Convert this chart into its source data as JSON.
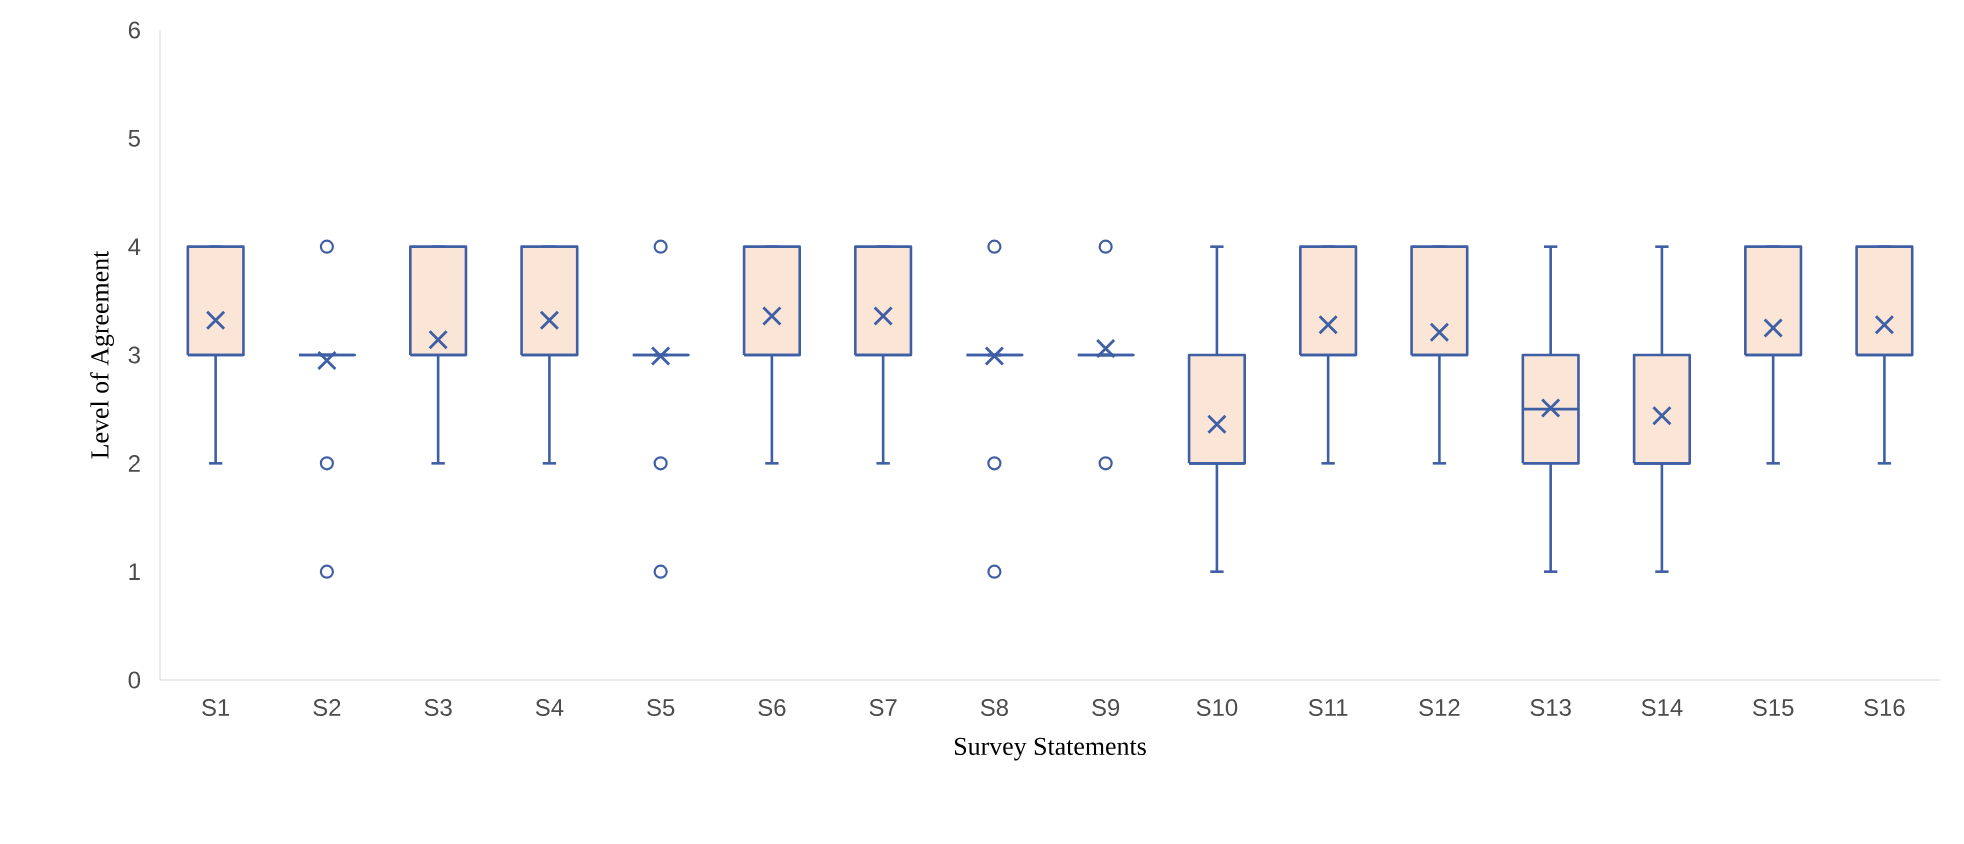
{
  "chart_data": {
    "type": "box",
    "xlabel": "Survey Statements",
    "ylabel": "Level of Agreement",
    "categories": [
      "S1",
      "S2",
      "S3",
      "S4",
      "S5",
      "S6",
      "S7",
      "S8",
      "S9",
      "S10",
      "S11",
      "S12",
      "S13",
      "S14",
      "S15",
      "S16"
    ],
    "ylim": [
      0,
      6
    ],
    "yticks": [
      0,
      1,
      2,
      3,
      4,
      5,
      6
    ],
    "marker": "cross",
    "series": [
      {
        "color": "#3f5fa5",
        "boxes": [
          {
            "low": 2,
            "q1": 3,
            "median": 3,
            "q3": 4,
            "high": 4,
            "mean": 3.32
          },
          {
            "low": 3,
            "q1": 3,
            "median": 3,
            "q3": 3,
            "high": 3,
            "mean": 2.95,
            "outliers": [
              4,
              2,
              1
            ]
          },
          {
            "low": 2,
            "q1": 3,
            "median": 3,
            "q3": 4,
            "high": 4,
            "mean": 3.14
          },
          {
            "low": 2,
            "q1": 3,
            "median": 3,
            "q3": 4,
            "high": 4,
            "mean": 3.32
          },
          {
            "low": 3,
            "q1": 3,
            "median": 3,
            "q3": 3,
            "high": 3,
            "mean": 2.99,
            "outliers": [
              4,
              2,
              1
            ]
          },
          {
            "low": 2,
            "q1": 3,
            "median": 3,
            "q3": 4,
            "high": 4,
            "mean": 3.36
          },
          {
            "low": 2,
            "q1": 3,
            "median": 3,
            "q3": 4,
            "high": 4,
            "mean": 3.36
          },
          {
            "low": 3,
            "q1": 3,
            "median": 3,
            "q3": 3,
            "high": 3,
            "mean": 2.99,
            "outliers": [
              4,
              2,
              1
            ]
          },
          {
            "low": 3,
            "q1": 3,
            "median": 3,
            "q3": 3,
            "high": 3,
            "mean": 3.06,
            "outliers": [
              4,
              2
            ]
          },
          {
            "low": 1,
            "q1": 2,
            "median": 2,
            "q3": 3,
            "high": 4,
            "mean": 2.36
          },
          {
            "low": 2,
            "q1": 3,
            "median": 3,
            "q3": 4,
            "high": 4,
            "mean": 3.28
          },
          {
            "low": 2,
            "q1": 3,
            "median": 3,
            "q3": 4,
            "high": 4,
            "mean": 3.21
          },
          {
            "low": 1,
            "q1": 2,
            "median": 2.5,
            "q3": 3,
            "high": 4,
            "mean": 2.51
          },
          {
            "low": 1,
            "q1": 2,
            "median": 2,
            "q3": 3,
            "high": 4,
            "mean": 2.44
          },
          {
            "low": 2,
            "q1": 3,
            "median": 3,
            "q3": 4,
            "high": 4,
            "mean": 3.25
          },
          {
            "low": 2,
            "q1": 3,
            "median": 3,
            "q3": 4,
            "high": 4,
            "mean": 3.28
          }
        ]
      }
    ]
  }
}
